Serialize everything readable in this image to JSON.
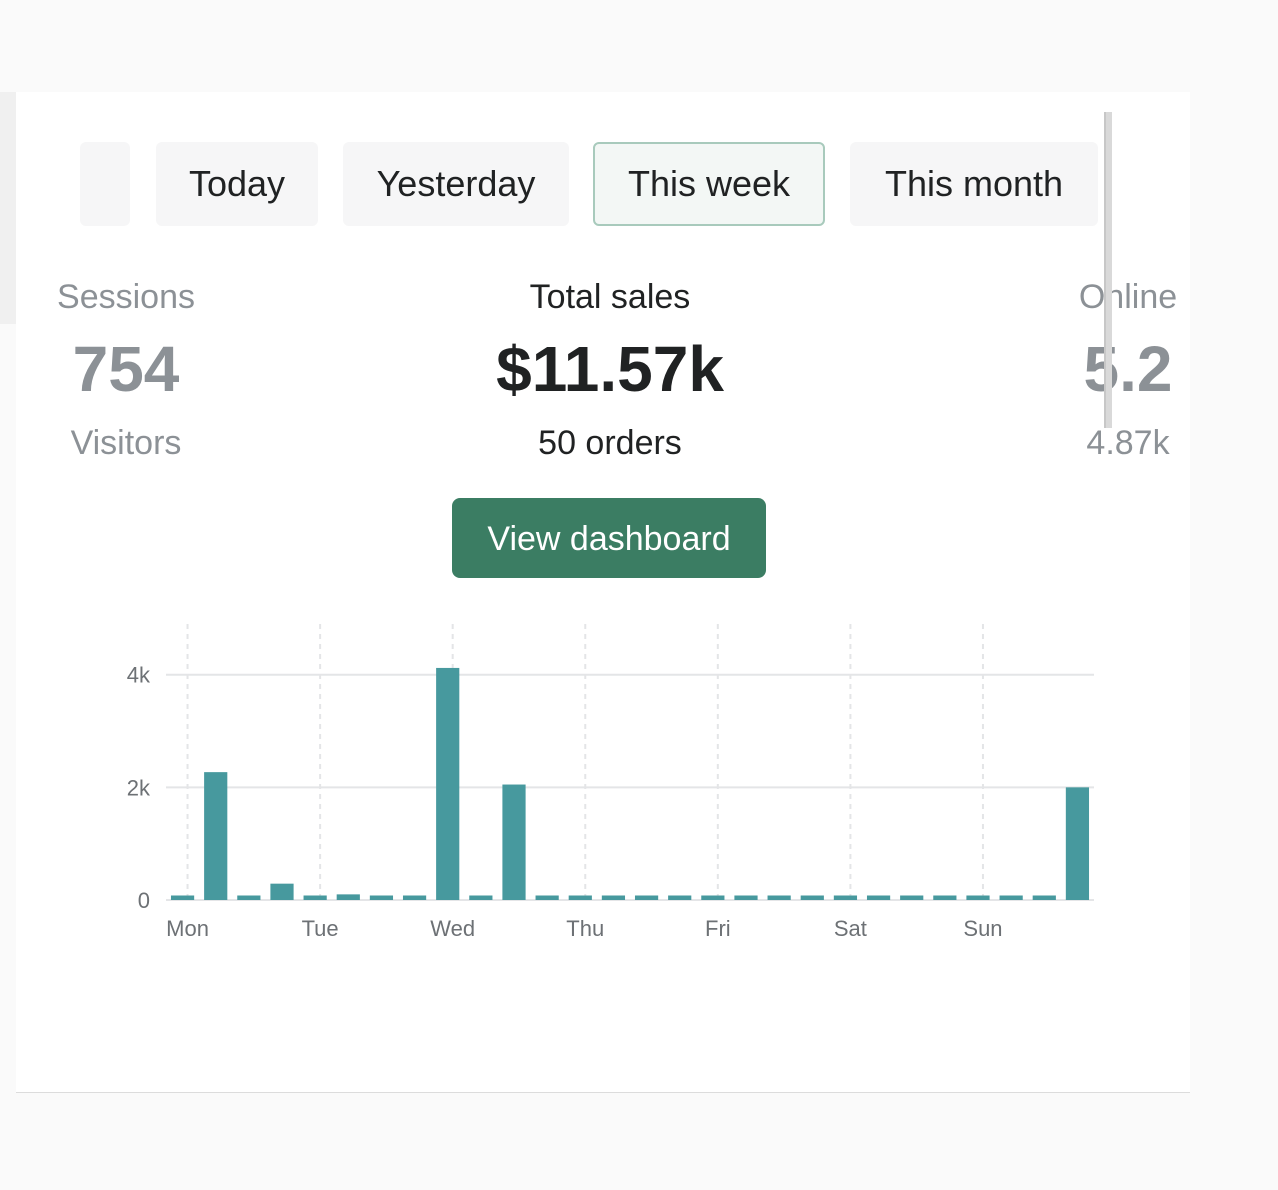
{
  "tabs": [
    {
      "label": ""
    },
    {
      "label": "Today"
    },
    {
      "label": "Yesterday"
    },
    {
      "label": "This week",
      "selected": true
    },
    {
      "label": "This month"
    }
  ],
  "metrics": [
    {
      "label": "Sessions",
      "value": "754",
      "sub": "Visitors"
    },
    {
      "label": "Total sales",
      "value": "$11.57k",
      "sub": "50 orders"
    },
    {
      "label": "Online",
      "value": "5.2",
      "sub": "4.87k"
    }
  ],
  "buttons": {
    "view_dashboard": "View dashboard"
  },
  "colors": {
    "accent": "#3b7d63",
    "bar": "#47999e",
    "tab_selected_border": "#a8cabc"
  },
  "chart_data": {
    "type": "bar",
    "title": "",
    "xlabel": "",
    "ylabel": "",
    "ylim": [
      0,
      4900
    ],
    "yticks": [
      0,
      2000,
      4000
    ],
    "ytick_labels": [
      "0",
      "2k",
      "4k"
    ],
    "day_labels": [
      "Mon",
      "Tue",
      "Wed",
      "Thu",
      "Fri",
      "Sat",
      "Sun"
    ],
    "grid": true,
    "legend": "none",
    "series": [
      {
        "values": [
          80,
          2270,
          80,
          290,
          80,
          100,
          80,
          80,
          4120,
          80,
          2050,
          80,
          80,
          80,
          80,
          80,
          80,
          80,
          80,
          80,
          80,
          80,
          80,
          80,
          80,
          80,
          80,
          2000
        ]
      }
    ]
  }
}
